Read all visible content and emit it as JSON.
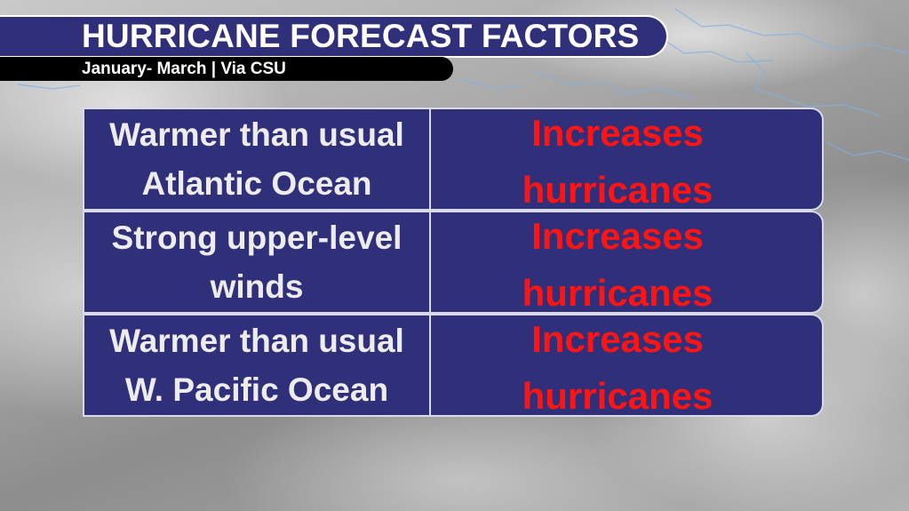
{
  "header": {
    "title": "HURRICANE FORECAST FACTORS",
    "subtitle": "January- March | Via CSU"
  },
  "colors": {
    "panel": "#302f79",
    "effect_text": "#ff1414",
    "factor_text": "#ececec",
    "subtitle_bar": "#000000"
  },
  "factors": [
    {
      "factor": "Warmer than usual Atlantic Ocean",
      "effect_line1": "Increases",
      "effect_line2": "hurricanes"
    },
    {
      "factor": "Strong upper-level winds",
      "effect_line1": "Increases",
      "effect_line2": "hurricanes"
    },
    {
      "factor": "Warmer than usual W. Pacific Ocean",
      "effect_line1": "Increases",
      "effect_line2": "hurricanes"
    }
  ]
}
